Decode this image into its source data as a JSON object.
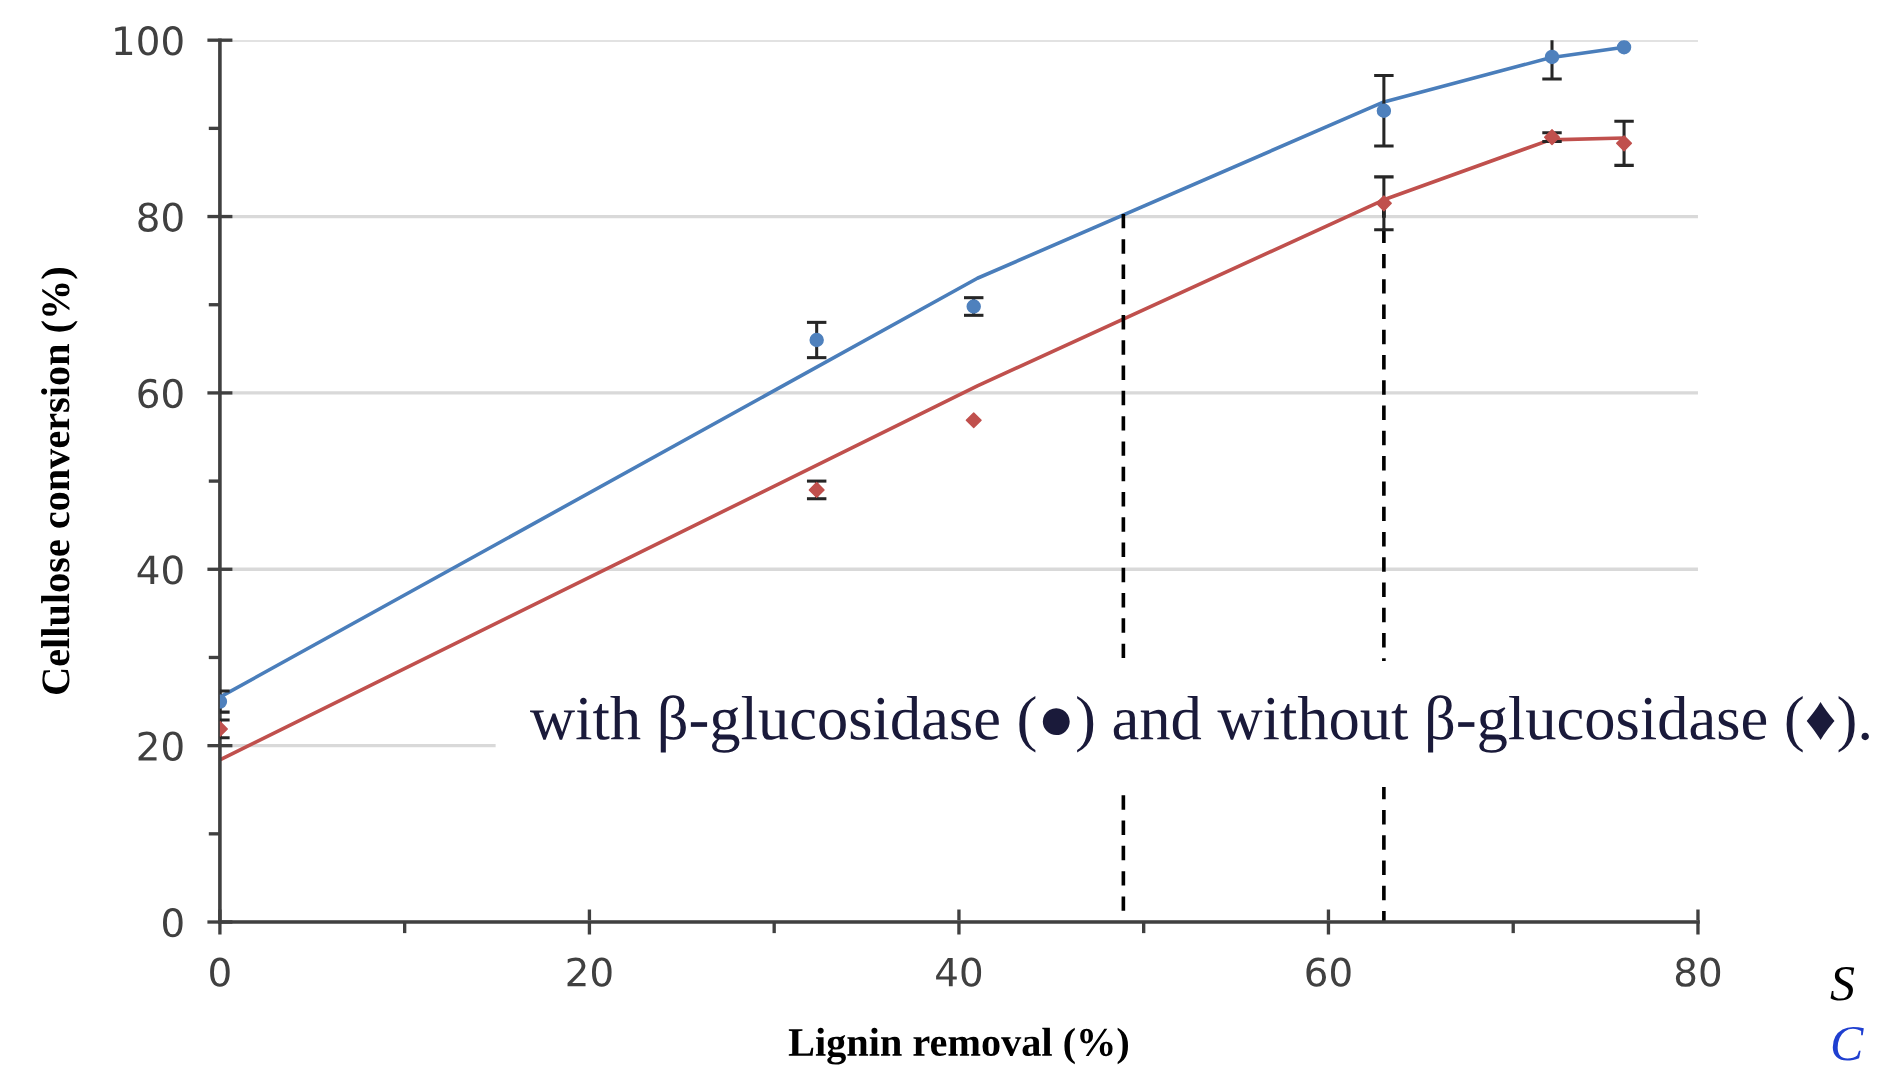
{
  "chart_data": {
    "type": "scatter",
    "xlabel": "Lignin removal (%)",
    "ylabel": "Cellulose conversion (%)",
    "xlim": [
      0,
      80
    ],
    "xticks": [
      0,
      {
        "value": 10,
        "label": null
      },
      20,
      {
        "value": 30,
        "label": null
      },
      40,
      {
        "value": 50,
        "label": null
      },
      60,
      {
        "value": 70,
        "label": null
      },
      80
    ],
    "ylim": [
      0,
      100
    ],
    "yticks": [
      0,
      {
        "value": 10,
        "label": null
      },
      20,
      {
        "value": 30,
        "label": null
      },
      40,
      {
        "value": 50,
        "label": null
      },
      60,
      {
        "value": 70,
        "label": null
      },
      80,
      {
        "value": 90,
        "label": null
      },
      100
    ],
    "grid": "y",
    "series": [
      {
        "type": "line",
        "color": "#4a7ebb",
        "x": [
          0,
          41,
          63,
          72,
          76
        ],
        "values": [
          25.5,
          73,
          93,
          98,
          99.2
        ]
      },
      {
        "type": "line",
        "color": "#c0504d",
        "x": [
          0,
          41,
          63,
          72,
          76
        ],
        "values": [
          18.4,
          60.8,
          81.9,
          88.7,
          88.9
        ]
      },
      {
        "color": "#4f81bd",
        "marker": "circle",
        "x": [
          0,
          32.3,
          40.8,
          63,
          72.1,
          76
        ],
        "values": [
          25,
          66,
          69.8,
          92,
          98.1,
          99.2
        ],
        "errors": [
          1.2,
          2,
          1,
          4,
          2.5,
          null
        ]
      },
      {
        "color": "#c0504d",
        "marker": "diamond",
        "x": [
          0,
          32.3,
          40.8,
          63,
          72.1,
          76
        ],
        "values": [
          21.9,
          49,
          56.9,
          81.5,
          89,
          88.3
        ],
        "errors": [
          1,
          1,
          null,
          3,
          0.5,
          2.5
        ]
      },
      {
        "type": "line",
        "color": "#000000",
        "line_style": "dashed",
        "x": [
          48.9,
          48.9
        ],
        "values": [
          80.3,
          0
        ]
      },
      {
        "type": "line",
        "color": "#000000",
        "line_style": "dashed",
        "x": [
          63,
          63
        ],
        "values": [
          81.5,
          0
        ]
      }
    ],
    "annotations": [
      "with β-glucosidase (●) and without β-glucosidase (♦).",
      "S",
      "C"
    ]
  }
}
